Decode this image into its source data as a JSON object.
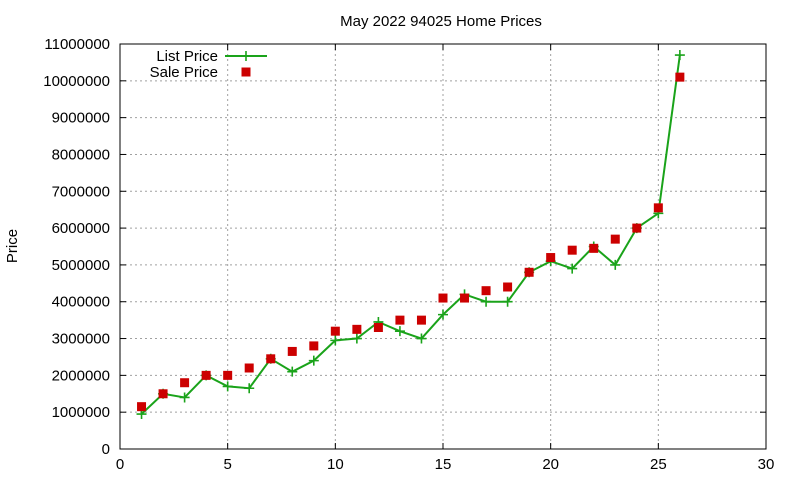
{
  "chart_data": {
    "type": "line",
    "title": "May 2022 94025 Home Prices",
    "xlabel": "",
    "ylabel": "Price",
    "xlim": [
      0,
      30
    ],
    "ylim": [
      0,
      11000000
    ],
    "x_ticks": [
      0,
      5,
      10,
      15,
      20,
      25,
      30
    ],
    "y_ticks": [
      0,
      1000000,
      2000000,
      3000000,
      4000000,
      5000000,
      6000000,
      7000000,
      8000000,
      9000000,
      10000000,
      11000000
    ],
    "grid": true,
    "legend_position": "top-left",
    "series": [
      {
        "name": "List Price",
        "style": "line-plus",
        "color": "#1aa31a",
        "x": [
          1,
          2,
          3,
          4,
          5,
          6,
          7,
          8,
          9,
          10,
          11,
          12,
          13,
          14,
          15,
          16,
          17,
          18,
          19,
          20,
          21,
          22,
          23,
          24,
          25,
          26
        ],
        "values": [
          950000,
          1500000,
          1400000,
          2000000,
          1700000,
          1650000,
          2450000,
          2100000,
          2400000,
          2950000,
          3000000,
          3450000,
          3200000,
          3000000,
          3650000,
          4200000,
          4000000,
          4000000,
          4800000,
          5100000,
          4900000,
          5500000,
          5000000,
          6000000,
          6400000,
          10700000
        ]
      },
      {
        "name": "Sale Price",
        "style": "square",
        "color": "#cc0000",
        "x": [
          1,
          2,
          3,
          4,
          5,
          6,
          7,
          8,
          9,
          10,
          11,
          12,
          13,
          14,
          15,
          16,
          17,
          18,
          19,
          20,
          21,
          22,
          23,
          24,
          25,
          26
        ],
        "values": [
          1150000,
          1500000,
          1800000,
          2000000,
          2000000,
          2200000,
          2450000,
          2650000,
          2800000,
          3200000,
          3250000,
          3300000,
          3500000,
          3500000,
          4100000,
          4100000,
          4300000,
          4400000,
          4800000,
          5200000,
          5400000,
          5450000,
          5700000,
          6000000,
          6550000,
          10100000
        ]
      }
    ]
  }
}
